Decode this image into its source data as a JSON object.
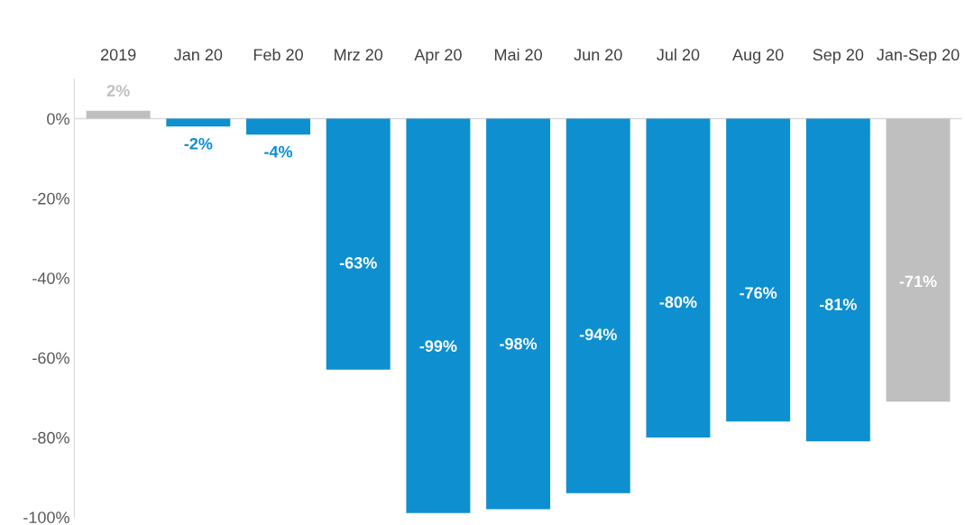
{
  "chart_data": {
    "type": "bar",
    "categories": [
      "2019",
      "Jan 20",
      "Feb 20",
      "Mrz 20",
      "Apr 20",
      "Mai 20",
      "Jun 20",
      "Jul 20",
      "Aug 20",
      "Sep 20",
      "Jan-Sep 20"
    ],
    "values": [
      2,
      -2,
      -4,
      -63,
      -99,
      -98,
      -94,
      -80,
      -76,
      -81,
      -71
    ],
    "value_labels": [
      "2%",
      "-2%",
      "-4%",
      "-63%",
      "-99%",
      "-98%",
      "-94%",
      "-80%",
      "-76%",
      "-81%",
      "-71%"
    ],
    "colors": [
      "#bfbfbf",
      "#0e8fd0",
      "#0e8fd0",
      "#0e8fd0",
      "#0e8fd0",
      "#0e8fd0",
      "#0e8fd0",
      "#0e8fd0",
      "#0e8fd0",
      "#0e8fd0",
      "#bfbfbf"
    ],
    "ylim": [
      -100,
      10
    ],
    "yticks": [
      {
        "value": 0,
        "label": "0%"
      },
      {
        "value": -20,
        "label": "-20%"
      },
      {
        "value": -40,
        "label": "-40%"
      },
      {
        "value": -60,
        "label": "-60%"
      },
      {
        "value": -80,
        "label": "-80%"
      },
      {
        "value": -100,
        "label": "-100%"
      }
    ],
    "ref_lines": [
      {
        "axis": "y",
        "value": 0,
        "color": "#d9d9d9"
      }
    ],
    "legend": false
  }
}
